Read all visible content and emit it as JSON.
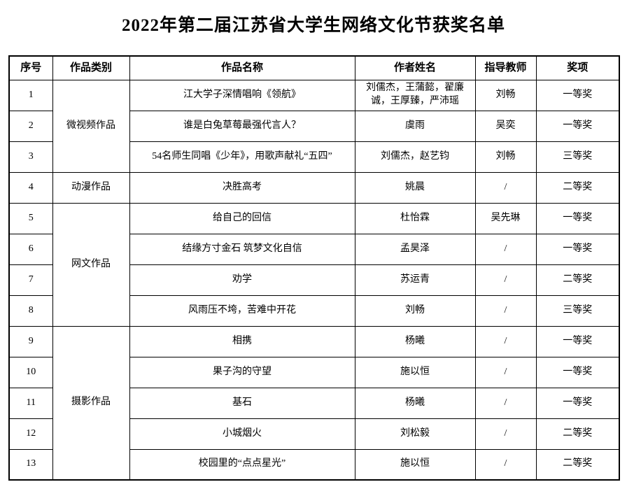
{
  "page": {
    "title": "2022年第二届江苏省大学生网络文化节获奖名单"
  },
  "table": {
    "headers": [
      "序号",
      "作品类别",
      "作品名称",
      "作者姓名",
      "指导教师",
      "奖项"
    ],
    "categories": [
      {
        "label": "微视频作品",
        "start": 1,
        "rowspan": 3
      },
      {
        "label": "动漫作品",
        "start": 4,
        "rowspan": 1
      },
      {
        "label": "网文作品",
        "start": 5,
        "rowspan": 4
      },
      {
        "label": "摄影作品",
        "start": 9,
        "rowspan": 5
      }
    ],
    "rows": [
      {
        "no": "1",
        "title": "江大学子深情唱响《领航》",
        "authors": "刘儒杰，王蒲懿，翟廉诚，王厚臻，严沛瑶",
        "advisor": "刘畅",
        "award": "一等奖"
      },
      {
        "no": "2",
        "title": "谁是白兔草莓最强代言人？",
        "authors": "虞雨",
        "advisor": "吴奕",
        "award": "一等奖"
      },
      {
        "no": "3",
        "title": "54名师生同唱《少年》，用歌声献礼“五四”",
        "authors": "刘儒杰，赵艺钧",
        "advisor": "刘畅",
        "award": "三等奖"
      },
      {
        "no": "4",
        "title": "决胜高考",
        "authors": "姚晨",
        "advisor": "/",
        "award": "二等奖"
      },
      {
        "no": "5",
        "title": "给自己的回信",
        "authors": "杜怡霖",
        "advisor": "吴先琳",
        "award": "一等奖"
      },
      {
        "no": "6",
        "title": "结缘方寸金石 筑梦文化自信",
        "authors": "孟昊泽",
        "advisor": "/",
        "award": "一等奖"
      },
      {
        "no": "7",
        "title": "劝学",
        "authors": "苏运青",
        "advisor": "/",
        "award": "二等奖"
      },
      {
        "no": "8",
        "title": "风雨压不垮，苦难中开花",
        "authors": "刘畅",
        "advisor": "/",
        "award": "三等奖"
      },
      {
        "no": "9",
        "title": "相携",
        "authors": "杨曦",
        "advisor": "/",
        "award": "一等奖"
      },
      {
        "no": "10",
        "title": "果子沟的守望",
        "authors": "施以恒",
        "advisor": "/",
        "award": "一等奖"
      },
      {
        "no": "11",
        "title": "基石",
        "authors": "杨曦",
        "advisor": "/",
        "award": "一等奖"
      },
      {
        "no": "12",
        "title": "小城烟火",
        "authors": "刘松毅",
        "advisor": "/",
        "award": "二等奖"
      },
      {
        "no": "13",
        "title": "校园里的“点点星光”",
        "authors": "施以恒",
        "advisor": "/",
        "award": "二等奖"
      }
    ]
  }
}
